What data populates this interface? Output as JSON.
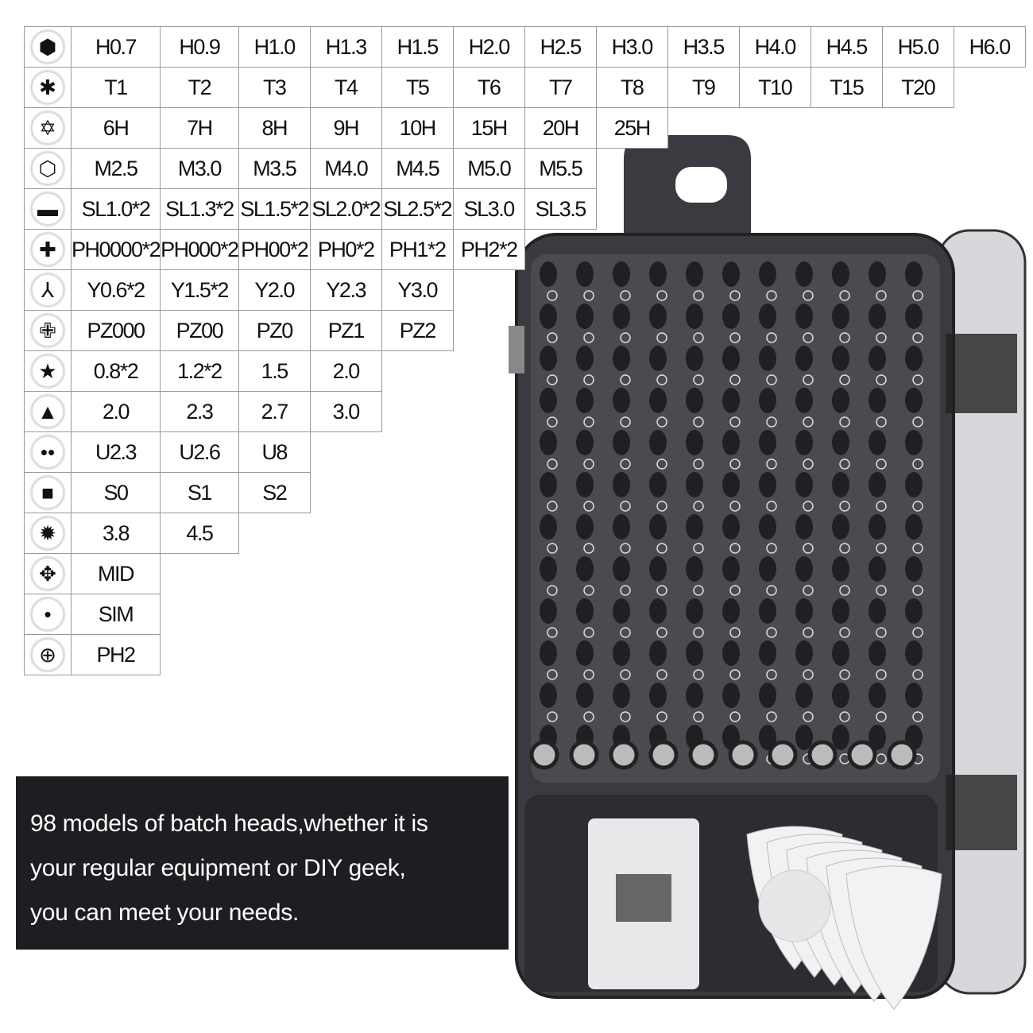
{
  "rows": [
    {
      "icon": "hex-icon",
      "glyph": "⬢",
      "values": [
        "H0.7",
        "H0.9",
        "H1.0",
        "H1.3",
        "H1.5",
        "H2.0",
        "H2.5",
        "H3.0",
        "H3.5",
        "H4.0",
        "H4.5",
        "H5.0",
        "H6.0"
      ]
    },
    {
      "icon": "torx-icon",
      "glyph": "✱",
      "values": [
        "T1",
        "T2",
        "T3",
        "T4",
        "T5",
        "T6",
        "T7",
        "T8",
        "T9",
        "T10",
        "T15",
        "T20"
      ]
    },
    {
      "icon": "torx-security-icon",
      "glyph": "✡",
      "values": [
        "6H",
        "7H",
        "8H",
        "9H",
        "10H",
        "15H",
        "20H",
        "25H"
      ]
    },
    {
      "icon": "hex-socket-icon",
      "glyph": "⬡",
      "values": [
        "M2.5",
        "M3.0",
        "M3.5",
        "M4.0",
        "M4.5",
        "M5.0",
        "M5.5"
      ]
    },
    {
      "icon": "slotted-icon",
      "glyph": "▬",
      "values": [
        "SL1.0*2",
        "SL1.3*2",
        "SL1.5*2",
        "SL2.0*2",
        "SL2.5*2",
        "SL3.0",
        "SL3.5"
      ]
    },
    {
      "icon": "phillips-icon",
      "glyph": "✚",
      "values": [
        "PH0000*2",
        "PH000*2",
        "PH00*2",
        "PH0*2",
        "PH1*2",
        "PH2*2"
      ]
    },
    {
      "icon": "tri-wing-icon",
      "glyph": "⅄",
      "values": [
        "Y0.6*2",
        "Y1.5*2",
        "Y2.0",
        "Y2.3",
        "Y3.0"
      ]
    },
    {
      "icon": "pozidriv-icon",
      "glyph": "✙",
      "values": [
        "PZ000",
        "PZ00",
        "PZ0",
        "PZ1",
        "PZ2"
      ]
    },
    {
      "icon": "pentalobe-icon",
      "glyph": "★",
      "values": [
        "0.8*2",
        "1.2*2",
        "1.5",
        "2.0"
      ]
    },
    {
      "icon": "triangle-icon",
      "glyph": "▲",
      "values": [
        "2.0",
        "2.3",
        "2.7",
        "3.0"
      ]
    },
    {
      "icon": "spanner-icon",
      "glyph": "••",
      "values": [
        "U2.3",
        "U2.6",
        "U8"
      ]
    },
    {
      "icon": "square-icon",
      "glyph": "■",
      "values": [
        "S0",
        "S1",
        "S2"
      ]
    },
    {
      "icon": "pentalobe-large-icon",
      "glyph": "✹",
      "values": [
        "3.8",
        "4.5"
      ]
    },
    {
      "icon": "mid-icon",
      "glyph": "✥",
      "values": [
        "MID"
      ]
    },
    {
      "icon": "sim-icon",
      "glyph": "•",
      "values": [
        "SIM"
      ]
    },
    {
      "icon": "phillips-large-icon",
      "glyph": "⊕",
      "values": [
        "PH2"
      ]
    }
  ],
  "banner": {
    "lines": [
      "98 models of batch heads,whether it is",
      "your regular equipment or DIY geek,",
      "you can meet your needs."
    ]
  },
  "colors": {
    "case": "#3a3b40",
    "case_dark": "#1f2024",
    "banner": "#1e1e22",
    "accessory": "#e8e8ea"
  }
}
